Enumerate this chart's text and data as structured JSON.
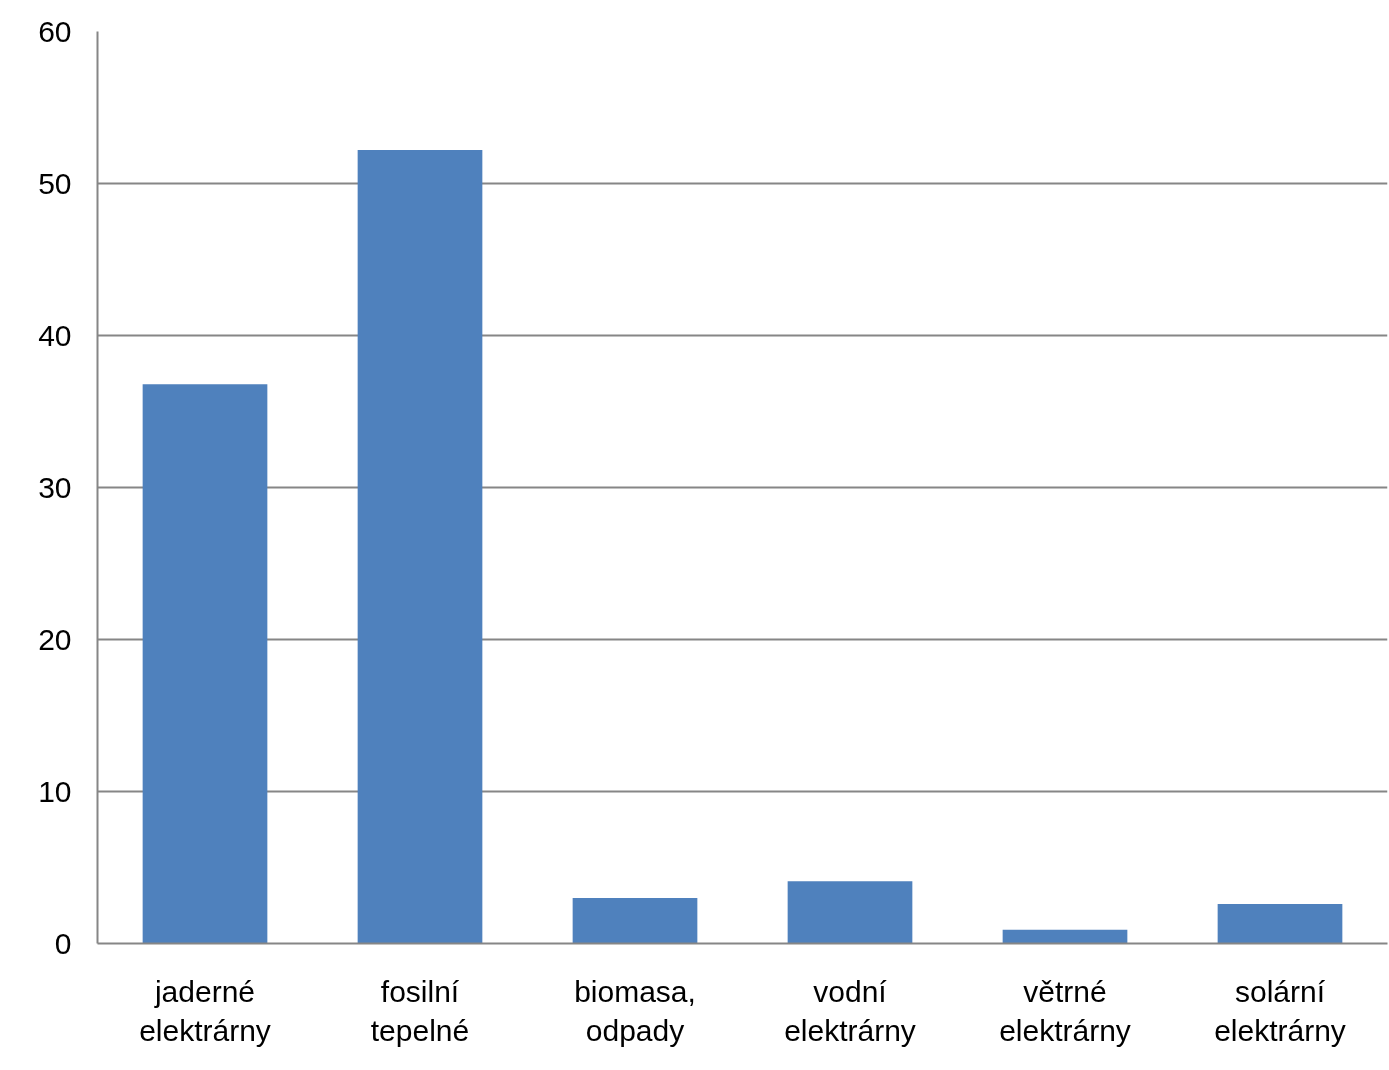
{
  "chart_data": {
    "type": "bar",
    "categories": [
      "jaderné elektrárny",
      "fosilní tepelné",
      "biomasa, odpady",
      "vodní elektrárny",
      "větrné elektrárny",
      "solární elektrárny"
    ],
    "values": [
      36.8,
      52.2,
      3.0,
      4.1,
      0.9,
      2.6
    ],
    "color": "#4f81bd",
    "ylim": [
      0,
      60
    ],
    "yticks": [
      0,
      10,
      20,
      30,
      40,
      50,
      60
    ],
    "grid": "y"
  }
}
